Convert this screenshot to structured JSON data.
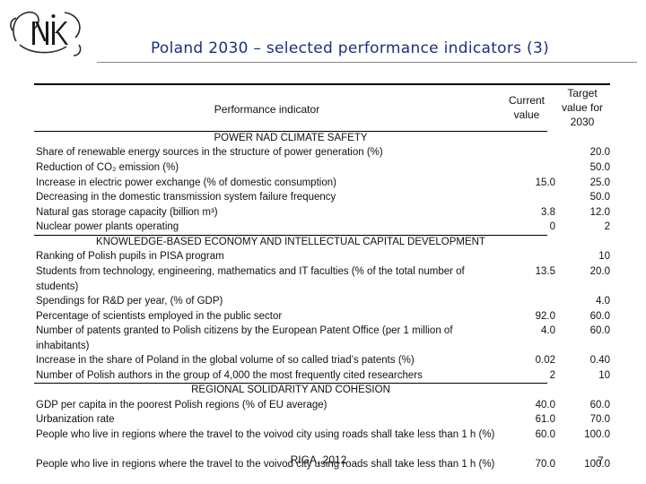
{
  "header": {
    "title": "Poland 2030 – selected performance indicators (3)"
  },
  "table": {
    "col_indicator": "Performance indicator",
    "col_current_1": "Current",
    "col_current_2": "value",
    "col_target_1": "Target",
    "col_target_2": "value for",
    "col_target_3": "2030",
    "sections": [
      {
        "title": "POWER NAD CLIMATE SAFETY",
        "rows": [
          {
            "label": "Share of renewable energy sources in the structure of power generation (%)",
            "current": "",
            "target": "20.0"
          },
          {
            "label": "Reduction of CO₂ emission (%)",
            "current": "",
            "target": "50.0"
          },
          {
            "label": "Increase in electric power exchange (% of domestic consumption)",
            "current": "15.0",
            "target": "25.0"
          },
          {
            "label": "Decreasing in the domestic transmission system failure frequency",
            "current": "",
            "target": "50.0"
          },
          {
            "label": "Natural gas storage capacity (billion m³)",
            "current": "3.8",
            "target": "12.0"
          },
          {
            "label": "Nuclear power plants operating",
            "current": "0",
            "target": "2"
          }
        ]
      },
      {
        "title": "KNOWLEDGE-BASED ECONOMY AND INTELLECTUAL CAPITAL DEVELOPMENT",
        "rows": [
          {
            "label": "Ranking of Polish pupils in PISA program",
            "current": "",
            "target": "10"
          },
          {
            "label": "Students from technology, engineering, mathematics and IT faculties (% of the total number of students)",
            "current": "13.5",
            "target": "20.0"
          },
          {
            "label": "Spendings for R&D per year, (% of GDP)",
            "current": "",
            "target": "4.0"
          },
          {
            "label": "Percentage of scientists employed in the public sector",
            "current": "92.0",
            "target": "60.0"
          },
          {
            "label": "Number of patents granted to Polish citizens by the European Patent Office (per 1 million of inhabitants)",
            "current": "4.0",
            "target": "60.0"
          },
          {
            "label": "Increase in the share of Poland in the global volume of so called triad’s patents (%)",
            "current": "0.02",
            "target": "0.40"
          },
          {
            "label": "Number of Polish authors in the group of 4,000 the most frequently cited researchers",
            "current": "2",
            "target": "10"
          }
        ]
      },
      {
        "title": "REGIONAL SOLIDARITY AND COHESION",
        "rows": [
          {
            "label": "GDP per capita in the poorest Polish regions (% of EU average)",
            "current": "40.0",
            "target": "60.0"
          },
          {
            "label": "Urbanization rate",
            "current": "61.0",
            "target": "70.0"
          },
          {
            "label": "People who live in regions where the travel to the voivod city using roads shall take less than 1 h (%)",
            "current": "60.0",
            "target": "100.0"
          },
          {
            "label": "People who live in regions where the travel to the voivod city using roads shall take less than 1 h (%)",
            "current": "70.0",
            "target": "100.0"
          }
        ]
      }
    ]
  },
  "footer": {
    "event": "RIGA, 2012",
    "page": "7"
  }
}
